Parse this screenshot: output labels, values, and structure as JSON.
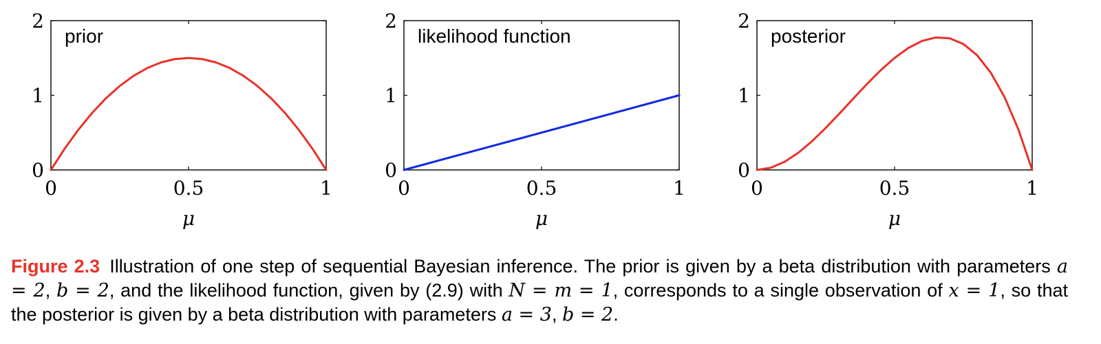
{
  "chart_data": [
    {
      "type": "line",
      "panel_label": "prior",
      "xlabel": "μ",
      "xlim": [
        0,
        1
      ],
      "ylim": [
        0,
        2
      ],
      "xticks": [
        "0",
        "0.5",
        "1"
      ],
      "yticks": [
        "0",
        "1",
        "2"
      ],
      "grid": false,
      "series": [
        {
          "color": "#e8332a",
          "x": [
            0,
            0.05,
            0.1,
            0.15,
            0.2,
            0.25,
            0.3,
            0.35,
            0.4,
            0.45,
            0.5,
            0.55,
            0.6,
            0.65,
            0.7,
            0.75,
            0.8,
            0.85,
            0.9,
            0.95,
            1
          ],
          "y": [
            0,
            0.285,
            0.54,
            0.765,
            0.96,
            1.125,
            1.26,
            1.365,
            1.44,
            1.485,
            1.5,
            1.485,
            1.44,
            1.365,
            1.26,
            1.125,
            0.96,
            0.765,
            0.54,
            0.285,
            0
          ]
        }
      ]
    },
    {
      "type": "line",
      "panel_label": "likelihood function",
      "xlabel": "μ",
      "xlim": [
        0,
        1
      ],
      "ylim": [
        0,
        2
      ],
      "xticks": [
        "0",
        "0.5",
        "1"
      ],
      "yticks": [
        "0",
        "1",
        "2"
      ],
      "grid": false,
      "series": [
        {
          "color": "#1229e0",
          "x": [
            0,
            1
          ],
          "y": [
            0,
            1
          ]
        }
      ]
    },
    {
      "type": "line",
      "panel_label": "posterior",
      "xlabel": "μ",
      "xlim": [
        0,
        1
      ],
      "ylim": [
        0,
        2
      ],
      "xticks": [
        "0",
        "0.5",
        "1"
      ],
      "yticks": [
        "0",
        "1",
        "2"
      ],
      "grid": false,
      "series": [
        {
          "color": "#e8332a",
          "x": [
            0,
            0.05,
            0.1,
            0.15,
            0.2,
            0.25,
            0.3,
            0.35,
            0.4,
            0.45,
            0.5,
            0.55,
            0.6,
            0.65,
            0.7,
            0.75,
            0.8,
            0.85,
            0.9,
            0.95,
            1
          ],
          "y": [
            0,
            0.0285,
            0.108,
            0.2295,
            0.384,
            0.5625,
            0.756,
            0.9555,
            1.152,
            1.3365,
            1.5,
            1.6335,
            1.728,
            1.7745,
            1.764,
            1.6875,
            1.536,
            1.3005,
            0.972,
            0.5415,
            0
          ]
        }
      ]
    }
  ],
  "caption": {
    "label": "Figure 2.3",
    "text_1": "Illustration of one step of sequential Bayesian inference. The prior is given by a beta distribution with parameters ",
    "math_1": "a = 2",
    "text_2": ", ",
    "math_2": "b = 2",
    "text_3": ", and the likelihood function, given by (2.9) with ",
    "math_3": "N = m = 1",
    "text_4": ", corresponds to a single observation of ",
    "math_4": "x = 1",
    "text_5": ", so that the posterior is given by a beta distribution with parameters ",
    "math_5": "a = 3",
    "text_6": ", ",
    "math_6": "b = 2",
    "text_7": "."
  }
}
